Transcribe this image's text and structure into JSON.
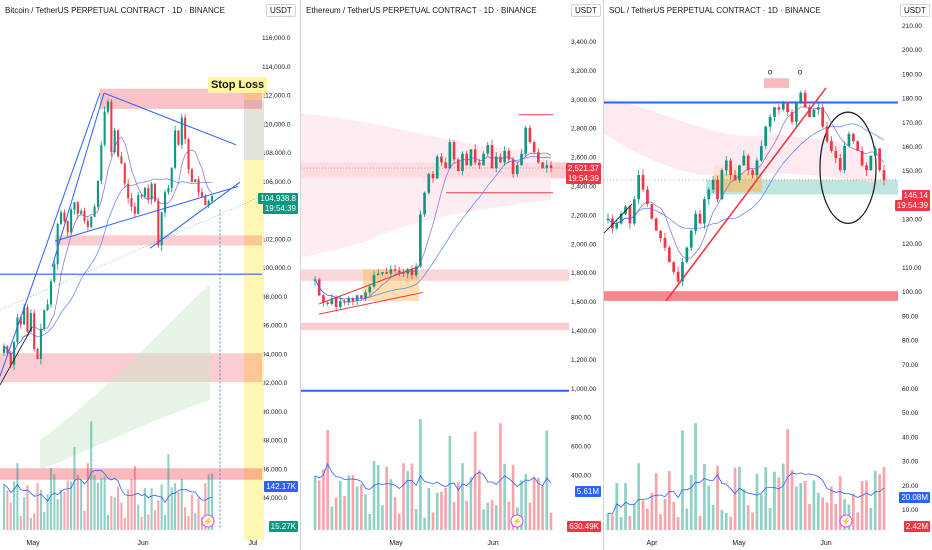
{
  "chart_data": [
    {
      "type": "candlestick",
      "title": "Bitcoin / TetherUS PERPETUAL CONTRACT · 1D · BINANCE",
      "currency": "USDT",
      "ylim": [
        83000,
        117500
      ],
      "y_ticks": [
        "116,000.0",
        "114,000.0",
        "112,000.0",
        "110,000.0",
        "108,000.0",
        "106,000.0",
        "104,000.0",
        "102,000.0",
        "100,000.0",
        "98,000.0",
        "96,000.0",
        "94,000.0",
        "92,000.0",
        "90,000.0",
        "88,000.0",
        "86,000.0",
        "84,000.0"
      ],
      "x_ticks": [
        "May",
        "Jun",
        "Jul"
      ],
      "last_price": "104,938.8",
      "countdown": "19:54:39",
      "volume_ma": "142.17K",
      "volume": "15.27K",
      "annotation": "Stop Loss",
      "close_path": [
        94500,
        94000,
        93200,
        94800,
        96500,
        96000,
        97200,
        95500,
        96800,
        94300,
        93600,
        95700,
        97000,
        97400,
        99000,
        100200,
        103000,
        103800,
        103200,
        102400,
        104000,
        104500,
        103700,
        103900,
        103200,
        102800,
        103500,
        104200,
        106000,
        108500,
        110800,
        111500,
        108000,
        109500,
        107700,
        107200,
        105800,
        104800,
        104200,
        103700,
        105000,
        104900,
        105500,
        104700,
        105800,
        104600,
        101500,
        103800,
        105200,
        105500,
        106900,
        109500,
        108500,
        110400,
        108900,
        106800,
        105900,
        106100,
        105200,
        104900,
        104300,
        104600,
        104939
      ]
    },
    {
      "type": "candlestick",
      "title": "Ethereum / TetherUS PERPETUAL CONTRACT · 1D · BINANCE",
      "currency": "USDT",
      "ylim": [
        300,
        3600
      ],
      "y_ticks": [
        "3,400.00",
        "3,200.00",
        "3,000.00",
        "2,800.00",
        "2,600.00",
        "2,400.00",
        "2,200.00",
        "2,000.00",
        "1,800.00",
        "1,600.00",
        "1,400.00",
        "1,200.00",
        "1,000.00",
        "800.00",
        "600.00",
        "400.00"
      ],
      "x_ticks": [
        "May",
        "Jun"
      ],
      "last_price": "2,521.37",
      "countdown": "19:54:39",
      "volume_ma": "5.61M",
      "volume": "630.49K",
      "close_path": [
        1750,
        1640,
        1590,
        1580,
        1620,
        1560,
        1600,
        1590,
        1620,
        1600,
        1640,
        1620,
        1660,
        1700,
        1780,
        1790,
        1800,
        1790,
        1820,
        1810,
        1800,
        1790,
        1820,
        1780,
        1840,
        2200,
        2350,
        2480,
        2450,
        2600,
        2560,
        2520,
        2700,
        2580,
        2500,
        2620,
        2540,
        2650,
        2560,
        2540,
        2620,
        2680,
        2520,
        2600,
        2560,
        2640,
        2580,
        2480,
        2540,
        2620,
        2800,
        2700,
        2630,
        2560,
        2520,
        2540,
        2521
      ]
    },
    {
      "type": "candlestick",
      "title": "SOL / TetherUS PERPETUAL CONTRACT · 1D · BINANCE",
      "currency": "USDT",
      "ylim": [
        5,
        215
      ],
      "y_ticks": [
        "210.00",
        "200.00",
        "190.00",
        "180.00",
        "170.00",
        "160.00",
        "150.00",
        "140.00",
        "130.00",
        "120.00",
        "110.00",
        "100.00",
        "90.00",
        "80.00",
        "70.00",
        "60.00",
        "50.00",
        "40.00",
        "30.00",
        "20.00",
        "10.00"
      ],
      "x_ticks": [
        "Apr",
        "May",
        "Jun"
      ],
      "last_price": "146.14",
      "countdown": "19:54:39",
      "volume_ma": "20.08M",
      "volume": "2.42M",
      "annotations": [
        "o",
        "o"
      ],
      "close_path": [
        130,
        126,
        128,
        132,
        135,
        128,
        138,
        148,
        142,
        136,
        130,
        125,
        122,
        118,
        112,
        108,
        104,
        112,
        118,
        125,
        132,
        128,
        138,
        142,
        146,
        138,
        150,
        154,
        148,
        146,
        152,
        156,
        150,
        148,
        154,
        160,
        168,
        172,
        176,
        175,
        178,
        174,
        170,
        178,
        182,
        176,
        172,
        175,
        176,
        168,
        162,
        158,
        155,
        150,
        160,
        165,
        162,
        158,
        152,
        150,
        156,
        159,
        150,
        146
      ]
    }
  ]
}
